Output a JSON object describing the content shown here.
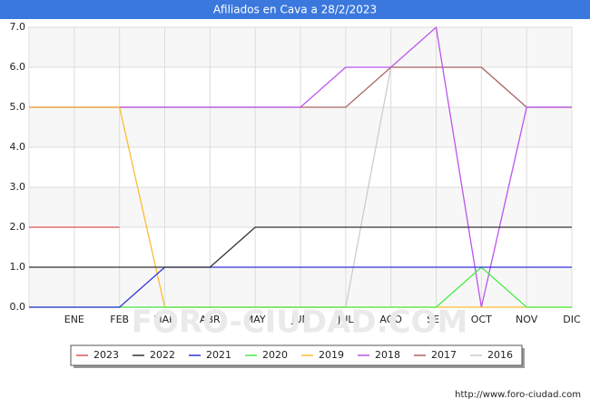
{
  "chart_data": {
    "type": "line",
    "title": "Afiliados en Cava a 28/2/2023",
    "categories": [
      null,
      "ENE",
      "FEB",
      "MAR",
      "ABR",
      "MAY",
      "JUN",
      "JUL",
      "AGO",
      "SEP",
      "OCT",
      "NOV",
      "DIC"
    ],
    "ylim": [
      0,
      7
    ],
    "yticks": [
      {
        "value": 0,
        "label": "0.0"
      },
      {
        "value": 1,
        "label": "1.0"
      },
      {
        "value": 2,
        "label": "2.0"
      },
      {
        "value": 3,
        "label": "3.0"
      },
      {
        "value": 4,
        "label": "4.0"
      },
      {
        "value": 5,
        "label": "5.0"
      },
      {
        "value": 6,
        "label": "6.0"
      },
      {
        "value": 7,
        "label": "7.0"
      }
    ],
    "grid": true,
    "series": [
      {
        "name": "2023",
        "color": "#e05555",
        "values": [
          2,
          2,
          2,
          null,
          null,
          null,
          null,
          null,
          null,
          null,
          null,
          null,
          null
        ]
      },
      {
        "name": "2022",
        "color": "#333333",
        "values": [
          1,
          1,
          1,
          1,
          1,
          2,
          2,
          2,
          2,
          2,
          2,
          2,
          2
        ]
      },
      {
        "name": "2021",
        "color": "#3333dd",
        "values": [
          0,
          0,
          0,
          1,
          1,
          1,
          1,
          1,
          1,
          1,
          1,
          1,
          1
        ]
      },
      {
        "name": "2020",
        "color": "#44ee44",
        "values": [
          0,
          0,
          0,
          0,
          0,
          0,
          0,
          0,
          0,
          0,
          1,
          0,
          0
        ]
      },
      {
        "name": "2019",
        "color": "#ffbb33",
        "values": [
          5,
          5,
          5,
          0,
          0,
          0,
          0,
          0,
          0,
          0,
          0,
          0,
          0
        ]
      },
      {
        "name": "2018",
        "color": "#bb55ee",
        "values": [
          5,
          5,
          5,
          5,
          5,
          5,
          5,
          6,
          6,
          7,
          0,
          5,
          5
        ]
      },
      {
        "name": "2017",
        "color": "#aa6666",
        "values": [
          5,
          5,
          5,
          5,
          5,
          5,
          5,
          5,
          6,
          6,
          6,
          5,
          5
        ]
      },
      {
        "name": "2016",
        "color": "#cccccc",
        "values": [
          0,
          0,
          0,
          0,
          0,
          0,
          0,
          0,
          6,
          6,
          6,
          5,
          5
        ]
      }
    ],
    "watermark": "FORO-CIUDAD.COM",
    "source": "http://www.foro-ciudad.com"
  }
}
